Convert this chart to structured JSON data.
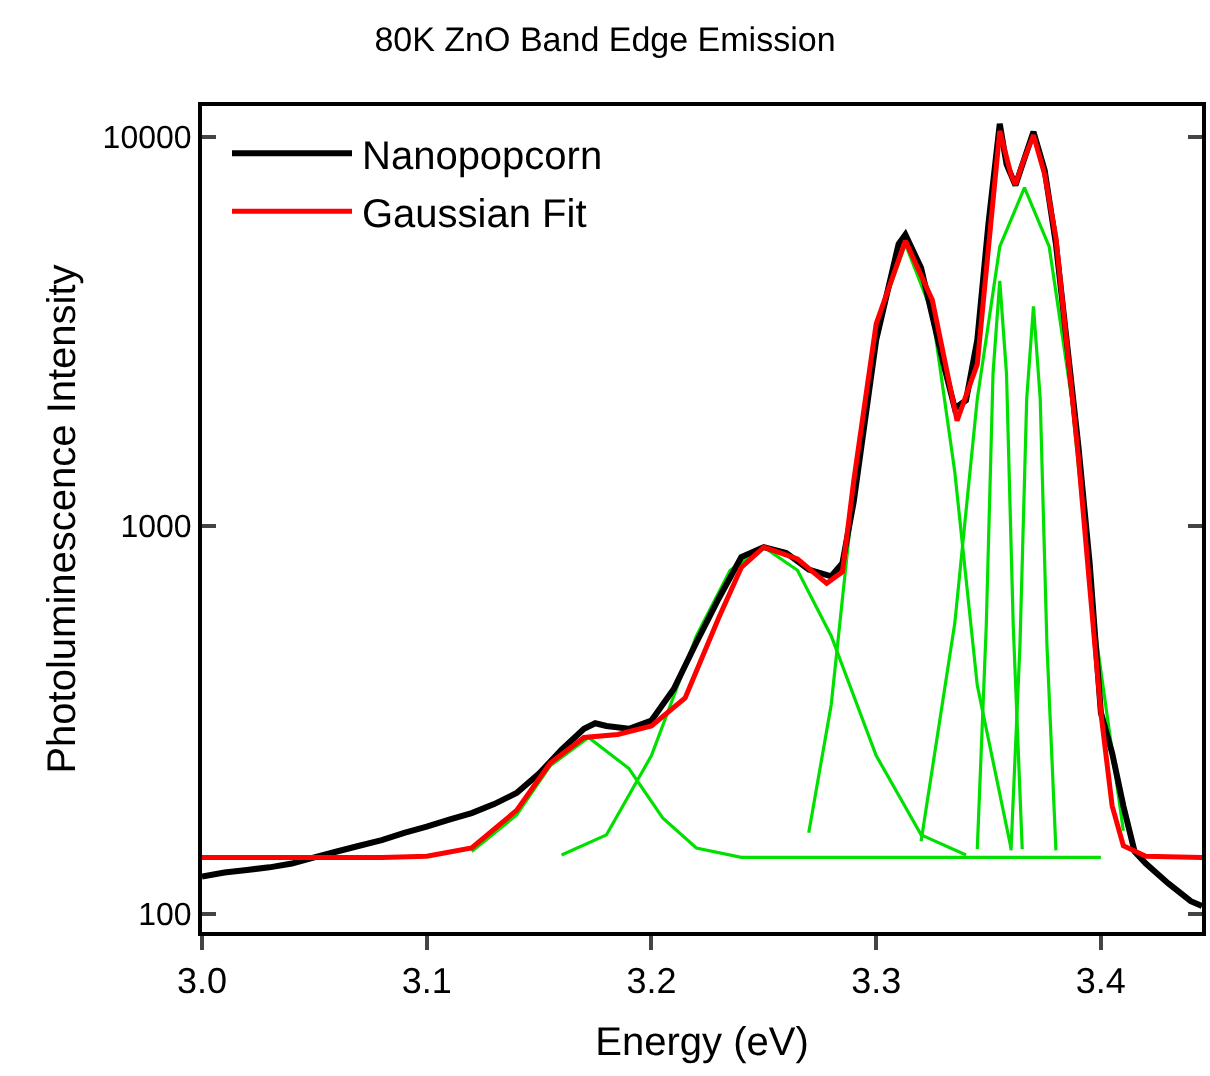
{
  "chart_data": {
    "type": "line",
    "title": "80K ZnO Band Edge Emission",
    "xlabel": "Energy (eV)",
    "ylabel": "Photoluminescence Intensity",
    "log": "y",
    "grid": false,
    "legend": "top left",
    "xlim": [
      3.0,
      3.445
    ],
    "xticks": [
      {
        "value": 3.0,
        "label": "3.0"
      },
      {
        "value": 3.1,
        "label": "3.1"
      },
      {
        "value": 3.2,
        "label": "3.2"
      },
      {
        "value": 3.3,
        "label": "3.3"
      },
      {
        "value": 3.4,
        "label": "3.4"
      }
    ],
    "ylim": [
      90,
      12000
    ],
    "yticks": [
      100,
      1000,
      10000
    ],
    "series": [
      {
        "name": null,
        "color": "#00e000",
        "x": [
          3.12,
          3.14,
          3.155,
          3.172,
          3.19,
          3.205,
          3.22,
          3.24,
          3.4
        ],
        "values": [
          145,
          180,
          241,
          285,
          237,
          177,
          148,
          140,
          140
        ]
      },
      {
        "name": null,
        "color": "#00e000",
        "x": [
          3.16,
          3.18,
          3.2,
          3.22,
          3.235,
          3.25,
          3.265,
          3.28,
          3.3,
          3.32,
          3.34
        ],
        "values": [
          142,
          160,
          256,
          520,
          767,
          880,
          767,
          520,
          256,
          160,
          142
        ]
      },
      {
        "name": null,
        "color": "#00e000",
        "x": [
          3.27,
          3.28,
          3.29,
          3.3,
          3.313,
          3.325,
          3.335,
          3.345,
          3.36
        ],
        "values": [
          162,
          346,
          1218,
          3272,
          5300,
          3510,
          1373,
          388,
          148
        ]
      },
      {
        "name": null,
        "color": "#00e000",
        "x": [
          3.32,
          3.335,
          3.345,
          3.355,
          3.366,
          3.377,
          3.387,
          3.397,
          3.41
        ],
        "values": [
          154,
          561,
          2115,
          5215,
          7400,
          5215,
          2115,
          561,
          164
        ]
      },
      {
        "name": null,
        "color": "#00e000",
        "x": [
          3.345,
          3.349,
          3.352,
          3.355,
          3.358,
          3.361,
          3.365
        ],
        "values": [
          147,
          552,
          2460,
          4260,
          2460,
          552,
          147
        ]
      },
      {
        "name": null,
        "color": "#00e000",
        "x": [
          3.36,
          3.364,
          3.367,
          3.37,
          3.373,
          3.376,
          3.38
        ],
        "values": [
          146,
          493,
          2122,
          3660,
          2122,
          493,
          146
        ]
      },
      {
        "name": "Nanopopcorn",
        "color": "#000000",
        "x": [
          3.0,
          3.01,
          3.02,
          3.03,
          3.04,
          3.05,
          3.06,
          3.07,
          3.08,
          3.09,
          3.1,
          3.11,
          3.12,
          3.13,
          3.14,
          3.15,
          3.16,
          3.17,
          3.175,
          3.18,
          3.19,
          3.2,
          3.21,
          3.22,
          3.23,
          3.24,
          3.25,
          3.26,
          3.27,
          3.28,
          3.285,
          3.29,
          3.3,
          3.31,
          3.313,
          3.32,
          3.33,
          3.335,
          3.34,
          3.345,
          3.35,
          3.355,
          3.358,
          3.362,
          3.366,
          3.37,
          3.375,
          3.38,
          3.39,
          3.395,
          3.4,
          3.405,
          3.41,
          3.415,
          3.42,
          3.43,
          3.44,
          3.445
        ],
        "values": [
          125,
          128,
          130,
          132,
          135,
          140,
          145,
          150,
          155,
          162,
          168,
          175,
          182,
          192,
          205,
          230,
          265,
          300,
          310,
          305,
          300,
          315,
          380,
          500,
          650,
          830,
          880,
          850,
          770,
          740,
          800,
          1150,
          3000,
          5300,
          5600,
          4600,
          2600,
          2000,
          2100,
          3000,
          6000,
          10800,
          8500,
          7500,
          8800,
          10300,
          8200,
          5300,
          1600,
          800,
          330,
          260,
          190,
          145,
          135,
          120,
          108,
          105
        ]
      },
      {
        "name": "Gaussian Fit",
        "color": "#ff0000",
        "x": [
          3.0,
          3.08,
          3.1,
          3.12,
          3.14,
          3.155,
          3.17,
          3.185,
          3.2,
          3.215,
          3.23,
          3.24,
          3.25,
          3.265,
          3.278,
          3.285,
          3.29,
          3.3,
          3.313,
          3.325,
          3.336,
          3.345,
          3.35,
          3.355,
          3.36,
          3.362,
          3.365,
          3.37,
          3.375,
          3.38,
          3.39,
          3.395,
          3.4,
          3.405,
          3.41,
          3.42,
          3.445
        ],
        "values": [
          140,
          140,
          141,
          148,
          185,
          245,
          285,
          290,
          305,
          360,
          580,
          780,
          880,
          820,
          710,
          760,
          1300,
          3300,
          5400,
          3800,
          1860,
          2600,
          5200,
          10350,
          8000,
          7530,
          8500,
          10100,
          8000,
          5500,
          1500,
          700,
          330,
          190,
          150,
          141,
          140
        ]
      }
    ]
  }
}
